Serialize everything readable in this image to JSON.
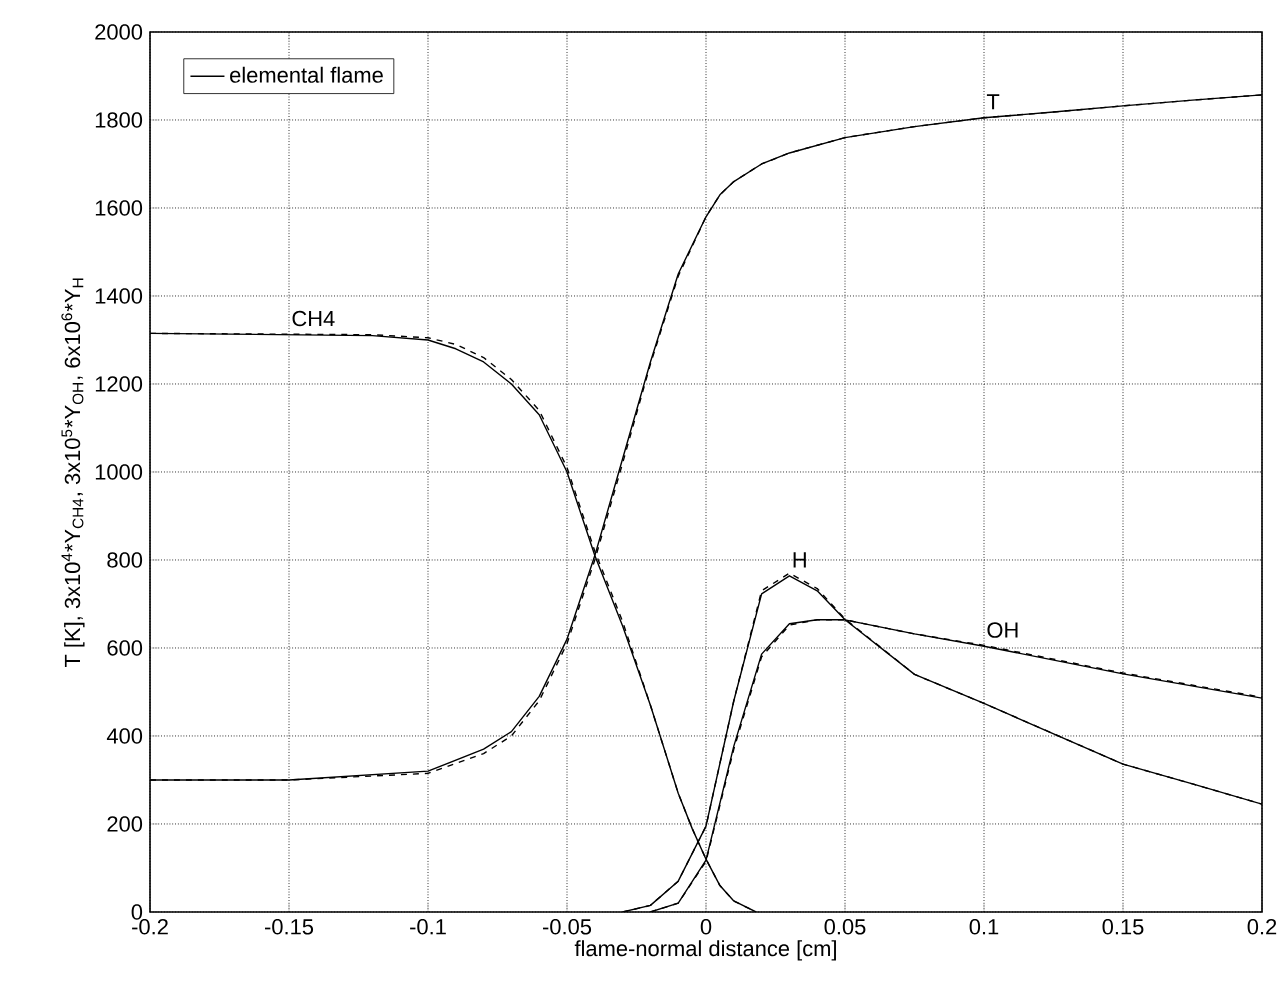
{
  "chart_data": {
    "type": "line",
    "xlabel": "flame-normal distance [cm]",
    "ylabel": "T [K], 3x10$^{4}$*Y$_{CH4}$, 3x10$^{5}$*Y$_{OH}$, 6x10$^{6}$*Y$_{H}$",
    "xlim": [
      -0.2,
      0.2
    ],
    "ylim": [
      0,
      2000
    ],
    "xticks": [
      -0.2,
      -0.15,
      -0.1,
      -0.05,
      0,
      0.05,
      0.1,
      0.15,
      0.2
    ],
    "yticks": [
      0,
      200,
      400,
      600,
      800,
      1000,
      1200,
      1400,
      1600,
      1800,
      2000
    ],
    "grid": true,
    "legend": "top left",
    "series": [
      {
        "color": "#000000",
        "line_style": "dashed",
        "x": [
          -0.2,
          -0.15,
          -0.1,
          -0.08,
          -0.07,
          -0.06,
          -0.05,
          -0.04,
          -0.03,
          -0.02,
          -0.01,
          0,
          0.005,
          0.01,
          0.02,
          0.03,
          0.05,
          0.075,
          0.1,
          0.125,
          0.15,
          0.175,
          0.2
        ],
        "values": [
          300,
          300,
          315,
          360,
          400,
          480,
          610,
          800,
          1020,
          1245,
          1445,
          1580,
          1630,
          1660,
          1700,
          1725,
          1760,
          1785,
          1805,
          1818,
          1832,
          1845,
          1857
        ]
      },
      {
        "name": "elemental flame",
        "color": "#000000",
        "line_style": "solid",
        "x": [
          -0.2,
          -0.15,
          -0.1,
          -0.08,
          -0.07,
          -0.06,
          -0.05,
          -0.04,
          -0.03,
          -0.02,
          -0.01,
          0,
          0.005,
          0.01,
          0.02,
          0.03,
          0.05,
          0.075,
          0.1,
          0.125,
          0.15,
          0.175,
          0.2
        ],
        "values": [
          300,
          300,
          320,
          370,
          410,
          490,
          620,
          810,
          1030,
          1250,
          1450,
          1580,
          1630,
          1660,
          1700,
          1725,
          1760,
          1785,
          1805,
          1818,
          1832,
          1845,
          1857
        ]
      },
      {
        "color": "#000000",
        "line_style": "dashed",
        "x": [
          -0.2,
          -0.12,
          -0.1,
          -0.09,
          -0.08,
          -0.07,
          -0.06,
          -0.05,
          -0.04,
          -0.03,
          -0.02,
          -0.01,
          -0.005,
          0,
          0.005,
          0.01,
          0.018
        ],
        "values": [
          1315,
          1312,
          1305,
          1290,
          1260,
          1210,
          1140,
          1010,
          820,
          660,
          470,
          270,
          190,
          120,
          60,
          25,
          0
        ]
      },
      {
        "color": "#000000",
        "line_style": "solid",
        "x": [
          -0.2,
          -0.12,
          -0.1,
          -0.09,
          -0.08,
          -0.07,
          -0.06,
          -0.05,
          -0.04,
          -0.03,
          -0.02,
          -0.01,
          -0.005,
          0,
          0.005,
          0.01,
          0.018
        ],
        "values": [
          1315,
          1310,
          1300,
          1280,
          1250,
          1200,
          1130,
          1000,
          810,
          650,
          470,
          270,
          190,
          120,
          60,
          25,
          0
        ]
      },
      {
        "color": "#000000",
        "line_style": "dashed",
        "x": [
          -0.03,
          -0.02,
          -0.01,
          0,
          0.01,
          0.02,
          0.03,
          0.04,
          0.05,
          0.075,
          0.1,
          0.125,
          0.15,
          0.175,
          0.2
        ],
        "values": [
          0,
          15,
          70,
          195,
          480,
          730,
          770,
          735,
          666,
          540,
          474,
          405,
          336,
          291,
          245
        ]
      },
      {
        "color": "#000000",
        "line_style": "solid",
        "x": [
          -0.03,
          -0.02,
          -0.01,
          0,
          0.01,
          0.02,
          0.03,
          0.04,
          0.05,
          0.075,
          0.1,
          0.125,
          0.15,
          0.175,
          0.2
        ],
        "values": [
          0,
          15,
          70,
          195,
          480,
          723,
          764,
          730,
          664,
          540,
          474,
          405,
          336,
          291,
          245
        ]
      },
      {
        "color": "#000000",
        "line_style": "dashed",
        "x": [
          -0.02,
          -0.01,
          0,
          0.01,
          0.02,
          0.03,
          0.04,
          0.05,
          0.075,
          0.1,
          0.15,
          0.2
        ],
        "values": [
          0,
          20,
          115,
          370,
          580,
          652,
          664,
          664,
          632,
          606,
          543,
          488
        ]
      },
      {
        "color": "#000000",
        "line_style": "solid",
        "x": [
          -0.02,
          -0.01,
          0,
          0.01,
          0.02,
          0.03,
          0.04,
          0.05,
          0.075,
          0.1,
          0.15,
          0.2
        ],
        "values": [
          0,
          20,
          118,
          377,
          586,
          655,
          664,
          664,
          632,
          604,
          541,
          486
        ]
      }
    ],
    "annotations": [
      {
        "text": "T",
        "x": 0.1,
        "y": 1805
      },
      {
        "text": "CH4",
        "x": -0.15,
        "y": 1312
      },
      {
        "text": "H",
        "x": 0.03,
        "y": 764
      },
      {
        "text": "OH",
        "x": 0.1,
        "y": 604
      }
    ]
  }
}
